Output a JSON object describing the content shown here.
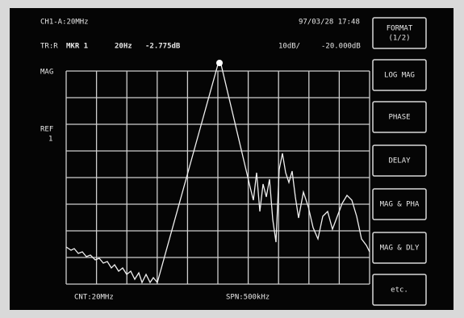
{
  "header": {
    "channel": "CH1-A:20MHz",
    "datetime": "97/03/28 17:48",
    "trace": "TR:R",
    "marker": "MKR 1",
    "marker_freq": "20Hz",
    "marker_value": "-2.775dB",
    "scale": "10dB/",
    "ref_value": "-20.000dB"
  },
  "axis": {
    "format": "MAG",
    "ref": "REF",
    "ref_num": "1"
  },
  "footer": {
    "center": "CNT:20MHz",
    "span": "SPN:500kHz"
  },
  "softkeys": [
    {
      "line1": "FORMAT",
      "line2": "(1/2)"
    },
    {
      "line1": "LOG MAG"
    },
    {
      "line1": "PHASE"
    },
    {
      "line1": "DELAY"
    },
    {
      "line1": "MAG & PHA"
    },
    {
      "line1": "MAG & DLY"
    },
    {
      "line1": "etc."
    }
  ]
}
